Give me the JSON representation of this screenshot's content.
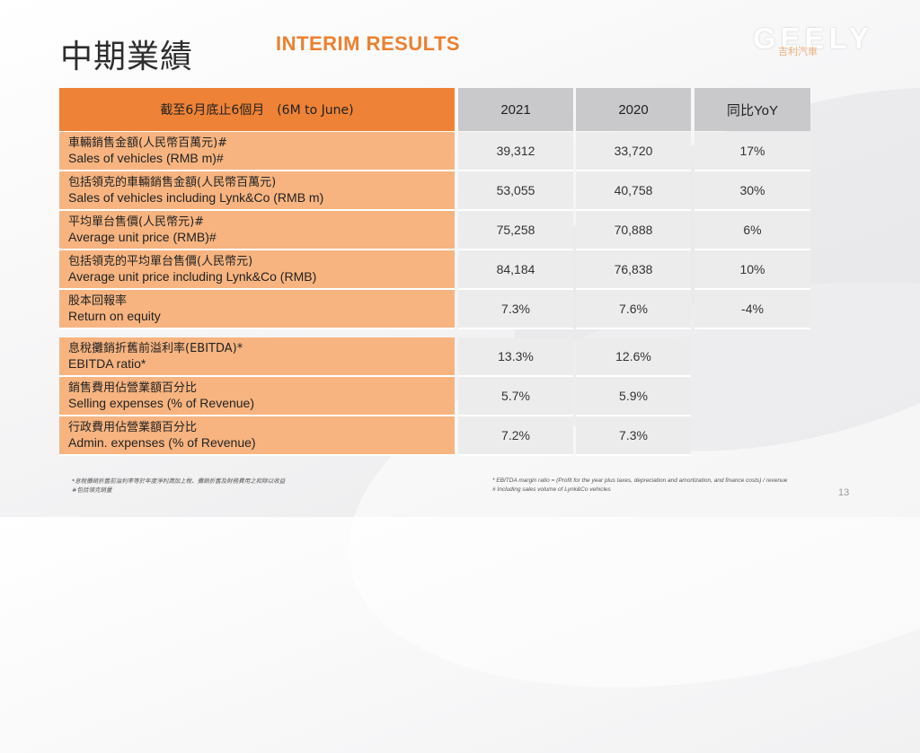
{
  "header": {
    "title_cn": "中期業績",
    "title_en": "INTERIM RESULTS",
    "logo": "GEELY",
    "logo_sub": "吉利汽車"
  },
  "table": {
    "period_label": "截至6月底止6個月　(6M to June)",
    "columns": [
      "2021",
      "2020",
      "同比YoY"
    ],
    "rows": [
      {
        "cn": "車輛銷售金額(人民幣百萬元)#",
        "en": "Sales of vehicles (RMB m)#",
        "v2021": "39,312",
        "v2020": "33,720",
        "yoy": "17%"
      },
      {
        "cn": "包括領克的車輛銷售金額(人民幣百萬元)",
        "en": "Sales of vehicles including Lynk&Co (RMB m)",
        "v2021": "53,055",
        "v2020": "40,758",
        "yoy": "30%"
      },
      {
        "cn": "平均單台售價(人民幣元)#",
        "en": "Average unit price (RMB)#",
        "v2021": "75,258",
        "v2020": "70,888",
        "yoy": "6%"
      },
      {
        "cn": "包括領克的平均單台售價(人民幣元)",
        "en": "Average unit price including Lynk&Co (RMB)",
        "v2021": "84,184",
        "v2020": "76,838",
        "yoy": "10%"
      },
      {
        "cn": "股本回報率",
        "en": "Return on equity",
        "v2021": "7.3%",
        "v2020": "7.6%",
        "yoy": "-4%"
      }
    ],
    "ratio_rows": [
      {
        "cn": "息稅攤銷折舊前溢利率(EBITDA)*",
        "en": "EBITDA ratio*",
        "v2021": "13.3%",
        "v2020": "12.6%"
      },
      {
        "cn": "銷售費用佔營業額百分比",
        "en": "Selling expenses (% of Revenue)",
        "v2021": "5.7%",
        "v2020": "5.9%"
      },
      {
        "cn": "行政費用佔營業額百分比",
        "en": "Admin. expenses (% of Revenue)",
        "v2021": "7.2%",
        "v2020": "7.3%"
      }
    ]
  },
  "footnotes": {
    "left_1": "*息稅攤銷折舊前溢利率等於年度淨利潤加上稅、攤銷折舊及財務費用之和除以收益",
    "left_2": "#包括領克銷量",
    "right_1": "* EBITDA margin ratio = (Profit for the year plus taxes, depreciation and amortization, and finance costs) / revenue",
    "right_2": "# Including sales volume of Lynk&Co vehicles"
  },
  "page_number": "13",
  "colors": {
    "accent_orange": "#ee8236",
    "label_orange": "#f7b480",
    "header_gray": "#c9c9cb",
    "value_gray": "#ececec"
  }
}
